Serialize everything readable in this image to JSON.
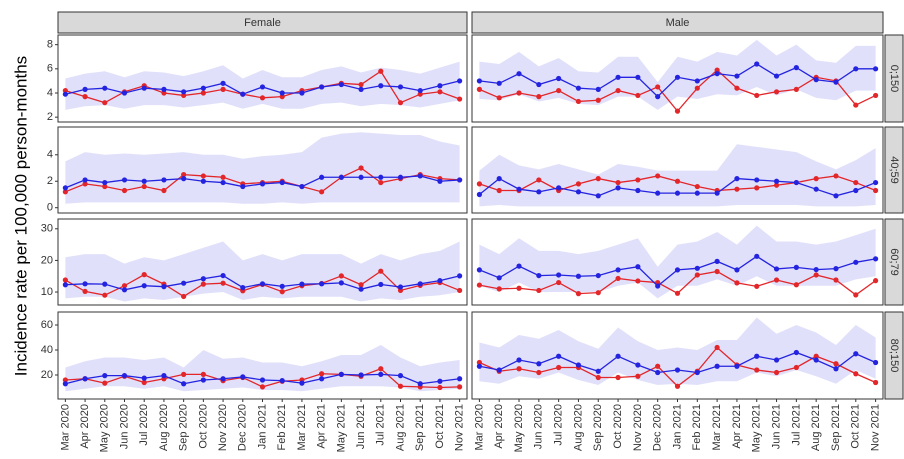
{
  "chart_data": {
    "type": "line",
    "ylabel": "Incidence rate per 100,000 person-months",
    "categories": [
      "Mar 2020",
      "Apr 2020",
      "May 2020",
      "Jun 2020",
      "Jul 2020",
      "Aug 2020",
      "Sep 2020",
      "Oct 2020",
      "Nov 2020",
      "Dec 2020",
      "Jan 2021",
      "Feb 2021",
      "Mar 2021",
      "Apr 2021",
      "May 2021",
      "Jun 2021",
      "Jul 2021",
      "Aug 2021",
      "Sep 2021",
      "Oct 2021",
      "Nov 2021"
    ],
    "columns": [
      "Female",
      "Male"
    ],
    "band_color": "#e0e0fb",
    "rows": [
      {
        "label": "0;150",
        "ylim": [
          1.6,
          8.8
        ],
        "yticks": [
          2,
          4,
          6,
          8
        ],
        "panels": [
          {
            "band_lower": [
              2.6,
              2.9,
              3.0,
              2.7,
              3.0,
              3.0,
              2.8,
              3.0,
              3.2,
              2.7,
              3.1,
              2.7,
              2.7,
              3.1,
              3.2,
              2.9,
              3.1,
              3.0,
              2.8,
              3.1,
              3.4
            ],
            "band_upper": [
              5.2,
              5.6,
              5.8,
              5.3,
              5.8,
              5.7,
              5.4,
              5.8,
              6.3,
              5.2,
              5.9,
              5.3,
              5.3,
              5.9,
              6.2,
              5.7,
              6.1,
              5.9,
              5.6,
              6.1,
              6.6
            ],
            "series": [
              {
                "color": "#e3262a",
                "values": [
                  4.2,
                  3.7,
                  3.2,
                  4.1,
                  4.6,
                  4.0,
                  3.8,
                  4.0,
                  4.3,
                  3.9,
                  3.6,
                  3.7,
                  4.2,
                  4.5,
                  4.8,
                  4.7,
                  5.8,
                  3.2,
                  3.9,
                  4.1,
                  3.5
                ]
              },
              {
                "color": "#2424e0",
                "values": [
                  3.9,
                  4.3,
                  4.4,
                  4.0,
                  4.4,
                  4.3,
                  4.1,
                  4.4,
                  4.8,
                  3.9,
                  4.5,
                  4.0,
                  4.0,
                  4.5,
                  4.7,
                  4.3,
                  4.6,
                  4.5,
                  4.2,
                  4.6,
                  5.0
                ]
              }
            ]
          },
          {
            "band_lower": [
              3.5,
              3.4,
              3.9,
              3.3,
              3.6,
              3.1,
              3.0,
              3.7,
              3.7,
              2.6,
              3.7,
              3.5,
              3.9,
              3.8,
              4.5,
              3.8,
              4.3,
              3.6,
              3.4,
              4.2,
              4.2
            ],
            "band_upper": [
              6.6,
              6.4,
              7.4,
              6.2,
              6.9,
              5.8,
              5.7,
              7.0,
              7.0,
              4.9,
              7.0,
              6.6,
              7.4,
              7.1,
              8.4,
              7.1,
              8.0,
              6.7,
              6.5,
              7.9,
              7.9
            ],
            "series": [
              {
                "color": "#e3262a",
                "values": [
                  4.3,
                  3.6,
                  4.0,
                  3.7,
                  4.2,
                  3.3,
                  3.4,
                  4.2,
                  3.8,
                  4.5,
                  2.5,
                  4.4,
                  5.9,
                  4.4,
                  3.8,
                  4.1,
                  4.3,
                  5.3,
                  5.0,
                  3.0,
                  3.8
                ]
              },
              {
                "color": "#2424e0",
                "values": [
                  5.0,
                  4.8,
                  5.6,
                  4.7,
                  5.2,
                  4.4,
                  4.3,
                  5.3,
                  5.3,
                  3.7,
                  5.3,
                  5.0,
                  5.6,
                  5.4,
                  6.4,
                  5.4,
                  6.1,
                  5.1,
                  4.9,
                  6.0,
                  6.0
                ]
              }
            ]
          }
        ]
      },
      {
        "label": "40;59",
        "ylim": [
          -0.4,
          6.1
        ],
        "yticks": [
          0,
          2,
          4
        ],
        "panels": [
          {
            "band_lower": [
              0.3,
              0.4,
              0.4,
              0.4,
              0.4,
              0.4,
              0.4,
              0.4,
              0.4,
              0.3,
              0.3,
              0.4,
              0.3,
              0.4,
              0.4,
              0.4,
              0.4,
              0.4,
              0.4,
              0.4,
              0.4
            ],
            "band_upper": [
              3.5,
              4.2,
              4.0,
              4.1,
              4.0,
              4.1,
              4.2,
              4.0,
              4.0,
              3.7,
              3.9,
              4.0,
              4.2,
              5.3,
              5.6,
              5.7,
              5.6,
              5.5,
              5.5,
              5.0,
              4.7
            ],
            "series": [
              {
                "color": "#e3262a",
                "values": [
                  1.2,
                  1.8,
                  1.6,
                  1.3,
                  1.6,
                  1.3,
                  2.5,
                  2.4,
                  2.3,
                  1.8,
                  1.9,
                  2.0,
                  1.6,
                  1.2,
                  2.3,
                  3.0,
                  1.9,
                  2.2,
                  2.5,
                  2.2,
                  2.1
                ]
              },
              {
                "color": "#2424e0",
                "values": [
                  1.5,
                  2.1,
                  1.9,
                  2.1,
                  2.0,
                  2.1,
                  2.2,
                  2.0,
                  1.9,
                  1.6,
                  1.8,
                  1.9,
                  1.6,
                  2.3,
                  2.3,
                  2.3,
                  2.3,
                  2.3,
                  2.4,
                  2.0,
                  2.1
                ]
              }
            ]
          },
          {
            "band_lower": [
              0.1,
              0.2,
              0.1,
              0.1,
              0.1,
              0.1,
              0.1,
              0.1,
              0.1,
              0.1,
              0.1,
              0.1,
              0.1,
              0.2,
              0.2,
              0.2,
              0.2,
              0.1,
              0.1,
              0.1,
              0.2
            ],
            "band_upper": [
              2.8,
              4.0,
              3.2,
              2.9,
              3.3,
              2.9,
              2.5,
              3.3,
              3.1,
              2.8,
              2.8,
              2.8,
              2.8,
              4.8,
              4.6,
              4.4,
              4.2,
              3.5,
              2.9,
              3.6,
              4.5
            ],
            "series": [
              {
                "color": "#e3262a",
                "values": [
                  1.8,
                  1.3,
                  1.3,
                  2.1,
                  1.3,
                  1.8,
                  2.2,
                  1.9,
                  2.1,
                  2.4,
                  2.0,
                  1.6,
                  1.3,
                  1.4,
                  1.5,
                  1.7,
                  1.9,
                  2.2,
                  2.4,
                  1.9,
                  1.3
                ]
              },
              {
                "color": "#2424e0",
                "values": [
                  1.0,
                  2.2,
                  1.4,
                  1.2,
                  1.5,
                  1.2,
                  0.9,
                  1.5,
                  1.3,
                  1.1,
                  1.1,
                  1.1,
                  1.1,
                  2.2,
                  2.1,
                  2.0,
                  1.9,
                  1.4,
                  0.9,
                  1.3,
                  1.9
                ]
              }
            ]
          }
        ]
      },
      {
        "label": "60;79",
        "ylim": [
          5.9,
          33.1
        ],
        "yticks": [
          10,
          20,
          30
        ],
        "panels": [
          {
            "band_lower": [
              8,
              8.5,
              8.5,
              7,
              8,
              7.5,
              8.5,
              9.5,
              10,
              7.5,
              8.5,
              8,
              8.5,
              8.5,
              8.5,
              7,
              8,
              7.5,
              8.5,
              9,
              10
            ],
            "band_upper": [
              21,
              22,
              22,
              19,
              21,
              20,
              22,
              24,
              26,
              20,
              22,
              20,
              22,
              22,
              22,
              19,
              22,
              20,
              22,
              23,
              26
            ],
            "series": [
              {
                "color": "#e3262a",
                "values": [
                  13.8,
                  10.2,
                  9.0,
                  12.0,
                  15.5,
                  12.5,
                  8.6,
                  12.5,
                  12.8,
                  10.4,
                  12.4,
                  10.1,
                  12.0,
                  12.7,
                  15.1,
                  12.3,
                  16.6,
                  10.5,
                  12.1,
                  13.0,
                  10.5
                ]
              },
              {
                "color": "#2424e0",
                "values": [
                  12.3,
                  12.6,
                  12.5,
                  10.7,
                  12.0,
                  11.7,
                  12.8,
                  14.2,
                  15.2,
                  11.4,
                  12.6,
                  11.8,
                  12.5,
                  12.6,
                  12.9,
                  10.9,
                  12.4,
                  11.6,
                  12.6,
                  13.6,
                  15.1
                ]
              }
            ]
          },
          {
            "band_lower": [
              12,
              10,
              13,
              10,
              10,
              10,
              10,
              12,
              13,
              8,
              12,
              12,
              14,
              12,
              15,
              12,
              12,
              12,
              12,
              14,
              15
            ],
            "band_upper": [
              25,
              22,
              27,
              23,
              23,
              22,
              23,
              25,
              27,
              18,
              25,
              26,
              29,
              25,
              31,
              26,
              26,
              25,
              26,
              28,
              30
            ],
            "series": [
              {
                "color": "#e3262a",
                "values": [
                  12.2,
                  11.0,
                  11.2,
                  10.5,
                  13.0,
                  9.5,
                  9.8,
                  14.3,
                  13.5,
                  13.0,
                  9.6,
                  15.4,
                  16.5,
                  12.9,
                  11.8,
                  13.8,
                  12.3,
                  15.4,
                  13.8,
                  9.1,
                  13.6
                ]
              },
              {
                "color": "#2424e0",
                "values": [
                  17.0,
                  14.5,
                  18.2,
                  15.2,
                  15.4,
                  15.0,
                  15.2,
                  17.0,
                  18.0,
                  11.9,
                  17.0,
                  17.5,
                  19.7,
                  17.0,
                  21.3,
                  17.3,
                  17.8,
                  17.1,
                  17.4,
                  19.4,
                  20.5
                ]
              }
            ]
          }
        ]
      },
      {
        "label": "80;150",
        "ylim": [
          0.8,
          70.4
        ],
        "yticks": [
          20,
          40,
          60
        ],
        "panels": [
          {
            "band_lower": [
              7,
              9,
              11,
              11,
              9,
              11,
              7,
              8,
              9,
              10,
              8,
              8,
              7,
              9,
              11,
              11,
              11,
              10,
              7,
              8,
              9
            ],
            "band_upper": [
              26,
              31,
              34,
              34,
              32,
              34,
              26,
              40,
              33,
              34,
              30,
              30,
              27,
              31,
              36,
              36,
              44,
              34,
              27,
              30,
              32
            ],
            "series": [
              {
                "color": "#e3262a",
                "values": [
                  16.0,
                  17.0,
                  13.5,
                  19.0,
                  14.0,
                  17.0,
                  20.5,
                  20.5,
                  15.5,
                  18.0,
                  10.5,
                  15.0,
                  16.0,
                  21.0,
                  20.5,
                  19.0,
                  25.0,
                  11.0,
                  10.5,
                  10.0,
                  10.5
                ]
              },
              {
                "color": "#2424e0",
                "values": [
                  13.0,
                  17.0,
                  19.5,
                  19.5,
                  17.5,
                  19.5,
                  13.0,
                  16.0,
                  17.0,
                  18.5,
                  16.0,
                  15.5,
                  13.5,
                  17.0,
                  20.5,
                  20.0,
                  20.5,
                  19.5,
                  13.0,
                  15.0,
                  17.0
                ]
              }
            ]
          },
          {
            "band_lower": [
              15,
              13,
              19,
              17,
              22,
              16,
              12,
              22,
              16,
              12,
              13,
              12,
              15,
              15,
              22,
              19,
              24,
              19,
              13,
              24,
              17
            ],
            "band_upper": [
              46,
              42,
              52,
              49,
              56,
              47,
              41,
              58,
              47,
              40,
              42,
              40,
              48,
              48,
              66,
              53,
              60,
              54,
              44,
              60,
              50
            ],
            "series": [
              {
                "color": "#e3262a",
                "values": [
                  30,
                  23,
                  25,
                  22,
                  26,
                  26,
                  18,
                  18,
                  19,
                  27,
                  11,
                  23,
                  42,
                  28,
                  24,
                  22,
                  26,
                  35,
                  29,
                  21,
                  14
                ]
              },
              {
                "color": "#2424e0",
                "values": [
                  27,
                  24,
                  32,
                  29,
                  35,
                  28,
                  23,
                  35,
                  28,
                  22,
                  24,
                  22,
                  27,
                  27,
                  35,
                  32,
                  38,
                  32,
                  25,
                  37,
                  30
                ]
              }
            ]
          }
        ]
      }
    ]
  }
}
